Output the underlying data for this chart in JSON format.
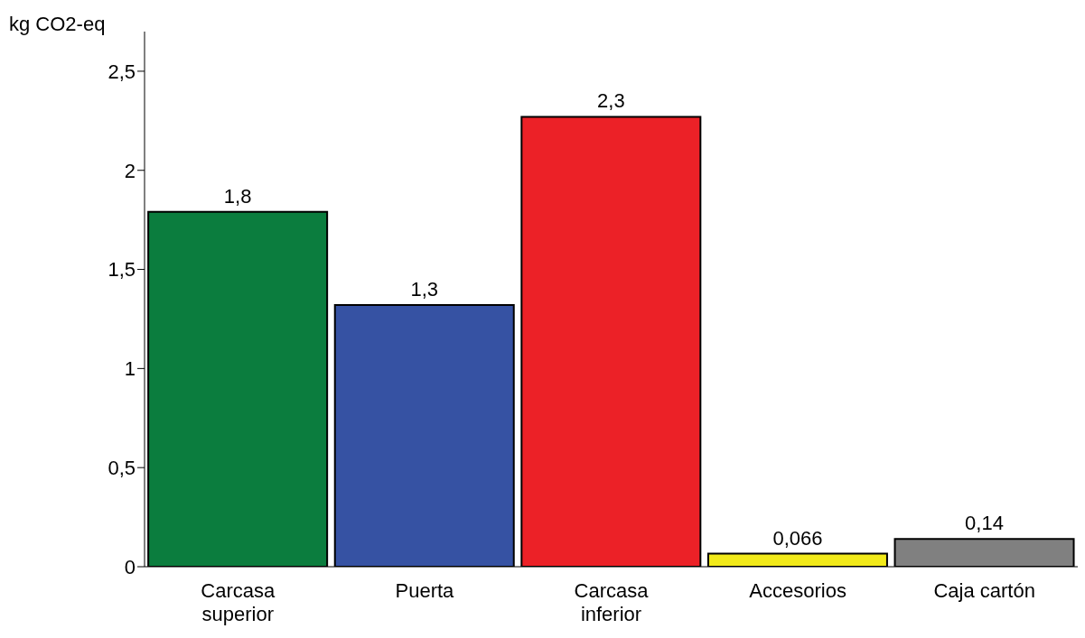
{
  "chart_data": {
    "type": "bar",
    "ylabel": "kg CO2-eq",
    "categories": [
      "Carcasa superior",
      "Puerta",
      "Carcasa inferior",
      "Accesorios",
      "Caja cartón"
    ],
    "values": [
      1.79,
      1.32,
      2.27,
      0.066,
      0.14
    ],
    "value_labels": [
      "1,8",
      "1,3",
      "2,3",
      "0,066",
      "0,14"
    ],
    "colors": [
      "#0b7d3e",
      "#3652a3",
      "#ec2127",
      "#f2ea1a",
      "#808080"
    ],
    "ylim": [
      0,
      2.7
    ],
    "yticks": [
      {
        "value": 0,
        "label": "0"
      },
      {
        "value": 0.5,
        "label": "0,5"
      },
      {
        "value": 1,
        "label": "1"
      },
      {
        "value": 1.5,
        "label": "1,5"
      },
      {
        "value": 2,
        "label": "2"
      },
      {
        "value": 2.5,
        "label": "2,5"
      }
    ],
    "grid": false,
    "legend": false
  }
}
